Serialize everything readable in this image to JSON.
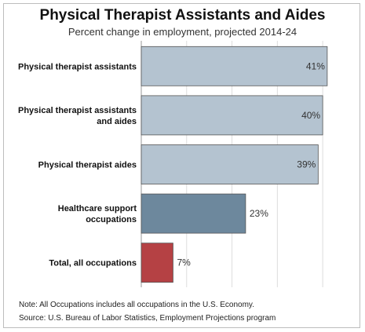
{
  "chart_data": {
    "type": "bar",
    "orientation": "horizontal",
    "title": "Physical Therapist Assistants and Aides",
    "subtitle": "Percent change in employment, projected 2014-24",
    "categories": [
      [
        "Physical therapist assistants"
      ],
      [
        "Physical therapist assistants",
        "and aides"
      ],
      [
        "Physical therapist aides"
      ],
      [
        "Healthcare support",
        "occupations"
      ],
      [
        "Total, all occupations"
      ]
    ],
    "values": [
      41,
      40,
      39,
      23,
      7
    ],
    "value_labels": [
      "41%",
      "40%",
      "39%",
      "23%",
      "7%"
    ],
    "bar_colors": [
      "#b4c3d0",
      "#b4c3d0",
      "#b4c3d0",
      "#6d889d",
      "#b54144"
    ],
    "xlim": [
      0,
      45
    ],
    "grid": "vertical",
    "legend": "none"
  },
  "notes": {
    "note": "Note: All Occupations includes all occupations in the U.S. Economy.",
    "source": "Source: U.S. Bureau of Labor Statistics, Employment Projections program"
  }
}
